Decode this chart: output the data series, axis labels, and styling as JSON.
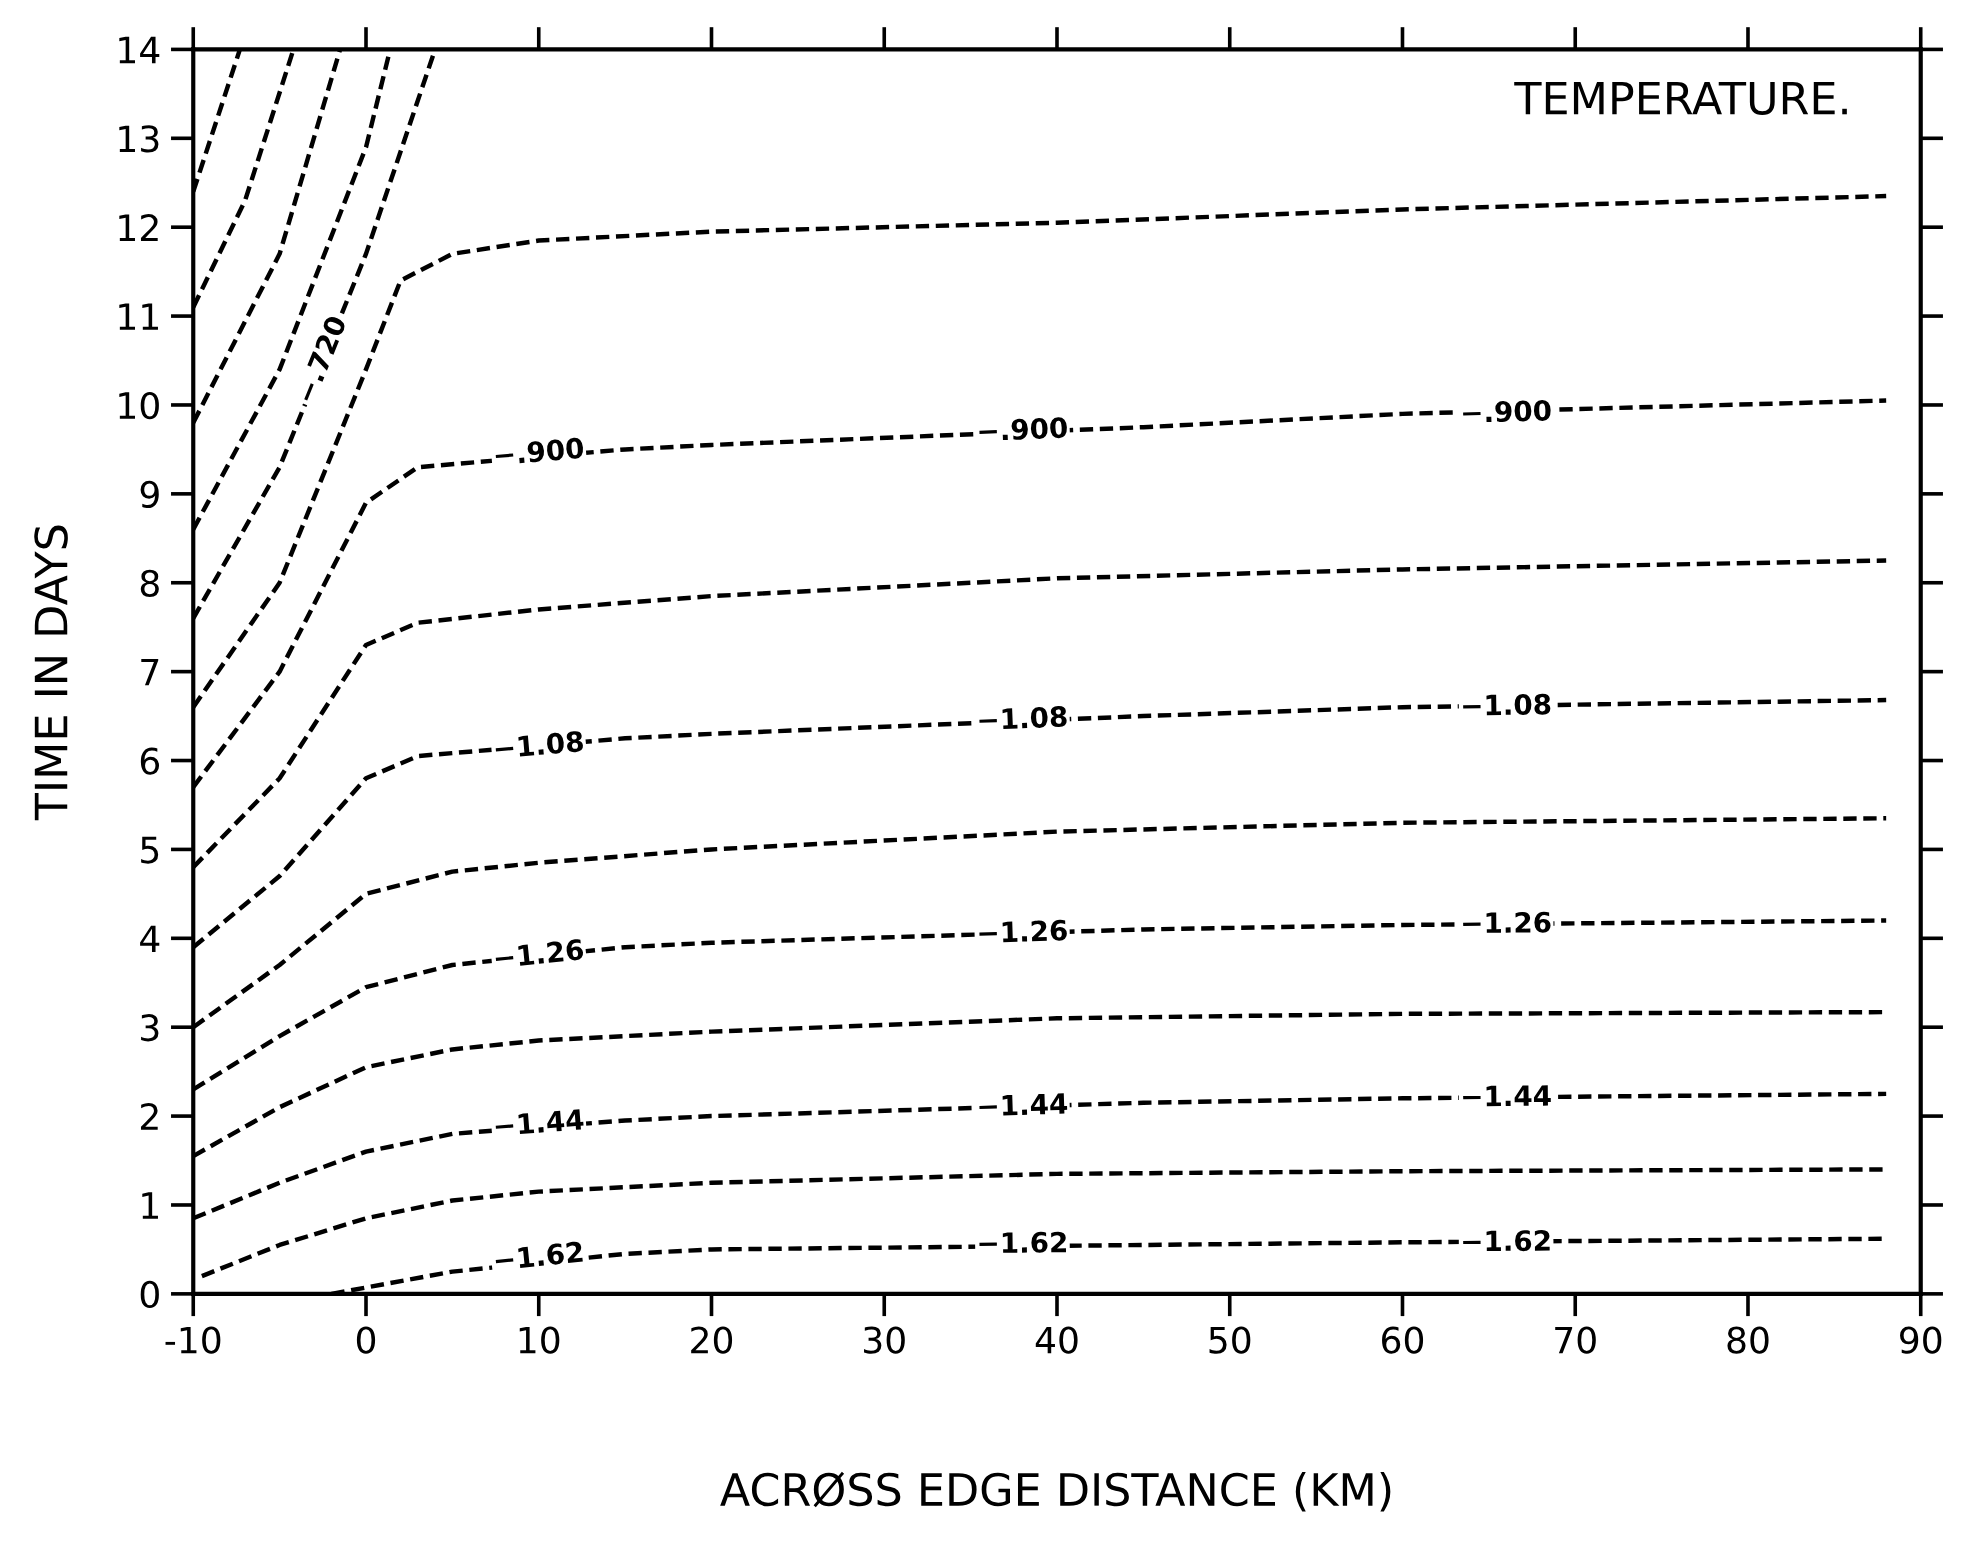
{
  "chart_data": {
    "type": "line",
    "title": "TEMPERATURE.",
    "xlabel": "ACRØSS EDGE DISTANCE (KM)",
    "ylabel": "TIME IN DAYS",
    "xlim": [
      -10,
      90
    ],
    "ylim": [
      0,
      14
    ],
    "xticks": [
      -10,
      0,
      10,
      20,
      30,
      40,
      50,
      60,
      70,
      80,
      90
    ],
    "yticks": [
      0,
      1,
      2,
      3,
      4,
      5,
      6,
      7,
      8,
      9,
      10,
      11,
      12,
      13,
      14
    ],
    "grid": false,
    "legend": false,
    "line_style": "dashed",
    "marker": "none",
    "series": [
      {
        "color": "#000000",
        "x": [
          -2,
          5,
          15,
          20,
          45,
          60,
          88
        ],
        "values": [
          0,
          0.25,
          0.45,
          0.5,
          0.55,
          0.58,
          0.62
        ]
      },
      {
        "color": "#000000",
        "x": [
          -9.5,
          -5,
          0,
          5,
          10,
          20,
          40,
          60,
          88
        ],
        "values": [
          0.2,
          0.55,
          0.85,
          1.05,
          1.15,
          1.25,
          1.35,
          1.38,
          1.4
        ]
      },
      {
        "color": "#000000",
        "x": [
          -10,
          -5,
          0,
          5,
          15,
          20,
          45,
          60,
          88
        ],
        "values": [
          0.85,
          1.25,
          1.6,
          1.8,
          1.95,
          2.0,
          2.15,
          2.2,
          2.25
        ]
      },
      {
        "color": "#000000",
        "x": [
          -10,
          -5,
          0,
          5,
          10,
          20,
          40,
          60,
          88
        ],
        "values": [
          1.55,
          2.1,
          2.55,
          2.75,
          2.85,
          2.95,
          3.1,
          3.15,
          3.17
        ]
      },
      {
        "color": "#000000",
        "x": [
          -10,
          -5,
          0,
          5,
          15,
          20,
          45,
          60,
          88
        ],
        "values": [
          2.3,
          2.9,
          3.45,
          3.7,
          3.9,
          3.95,
          4.1,
          4.15,
          4.2
        ]
      },
      {
        "color": "#000000",
        "x": [
          -10,
          -5,
          0,
          5,
          10,
          20,
          40,
          60,
          88
        ],
        "values": [
          3.0,
          3.7,
          4.5,
          4.75,
          4.85,
          5.0,
          5.2,
          5.3,
          5.35
        ]
      },
      {
        "color": "#000000",
        "x": [
          -10,
          -5,
          0,
          3,
          15,
          20,
          45,
          60,
          88
        ],
        "values": [
          3.9,
          4.7,
          5.8,
          6.05,
          6.25,
          6.3,
          6.5,
          6.6,
          6.68
        ]
      },
      {
        "color": "#000000",
        "x": [
          -10,
          -5,
          0,
          3,
          10,
          20,
          40,
          60,
          88
        ],
        "values": [
          4.8,
          5.8,
          7.3,
          7.55,
          7.7,
          7.85,
          8.05,
          8.15,
          8.25
        ]
      },
      {
        "color": "#000000",
        "x": [
          -10,
          -5,
          0,
          3,
          15,
          20,
          45,
          60,
          88
        ],
        "values": [
          5.7,
          7.0,
          8.9,
          9.3,
          9.5,
          9.55,
          9.75,
          9.9,
          10.05
        ]
      },
      {
        "color": "#000000",
        "x": [
          -10,
          -5,
          0,
          2,
          5,
          10,
          20,
          40,
          60,
          88
        ],
        "values": [
          6.6,
          8.0,
          10.4,
          11.4,
          11.7,
          11.85,
          11.95,
          12.05,
          12.2,
          12.35
        ]
      },
      {
        "color": "#000000",
        "x": [
          -10,
          -5,
          0,
          4
        ],
        "values": [
          7.6,
          9.3,
          11.7,
          14
        ]
      },
      {
        "color": "#000000",
        "x": [
          -10,
          -5,
          0,
          1.4
        ],
        "values": [
          8.6,
          10.4,
          12.9,
          14
        ]
      },
      {
        "color": "#000000",
        "x": [
          -10,
          -5,
          -1.5
        ],
        "values": [
          9.8,
          11.7,
          14
        ]
      },
      {
        "color": "#000000",
        "x": [
          -10,
          -7,
          -4.2
        ],
        "values": [
          11.1,
          12.3,
          14
        ]
      },
      {
        "color": "#000000",
        "x": [
          -10,
          -7.3
        ],
        "values": [
          12.4,
          14
        ]
      }
    ],
    "annotations": [
      {
        "text": "−.720",
        "x": -2.5,
        "y": 10.5
      },
      {
        "text": "−.900",
        "x": 10,
        "y": 9.45
      },
      {
        "text": "−.900",
        "x": 38,
        "y": 9.7
      },
      {
        "text": "−.900",
        "x": 66,
        "y": 9.9
      },
      {
        "text": "−1.08",
        "x": 10,
        "y": 6.15
      },
      {
        "text": "−1.08",
        "x": 38,
        "y": 6.45
      },
      {
        "text": "−1.08",
        "x": 66,
        "y": 6.6
      },
      {
        "text": "−1.26",
        "x": 10,
        "y": 3.8
      },
      {
        "text": "−1.26",
        "x": 38,
        "y": 4.05
      },
      {
        "text": "−1.26",
        "x": 66,
        "y": 4.15
      },
      {
        "text": "−1.44",
        "x": 10,
        "y": 1.9
      },
      {
        "text": "−1.44",
        "x": 38,
        "y": 2.1
      },
      {
        "text": "−1.44",
        "x": 66,
        "y": 2.2
      },
      {
        "text": "−1.62",
        "x": 10,
        "y": 0.4
      },
      {
        "text": "−1.62",
        "x": 38,
        "y": 0.55
      },
      {
        "text": "−1.62",
        "x": 66,
        "y": 0.57
      }
    ]
  }
}
